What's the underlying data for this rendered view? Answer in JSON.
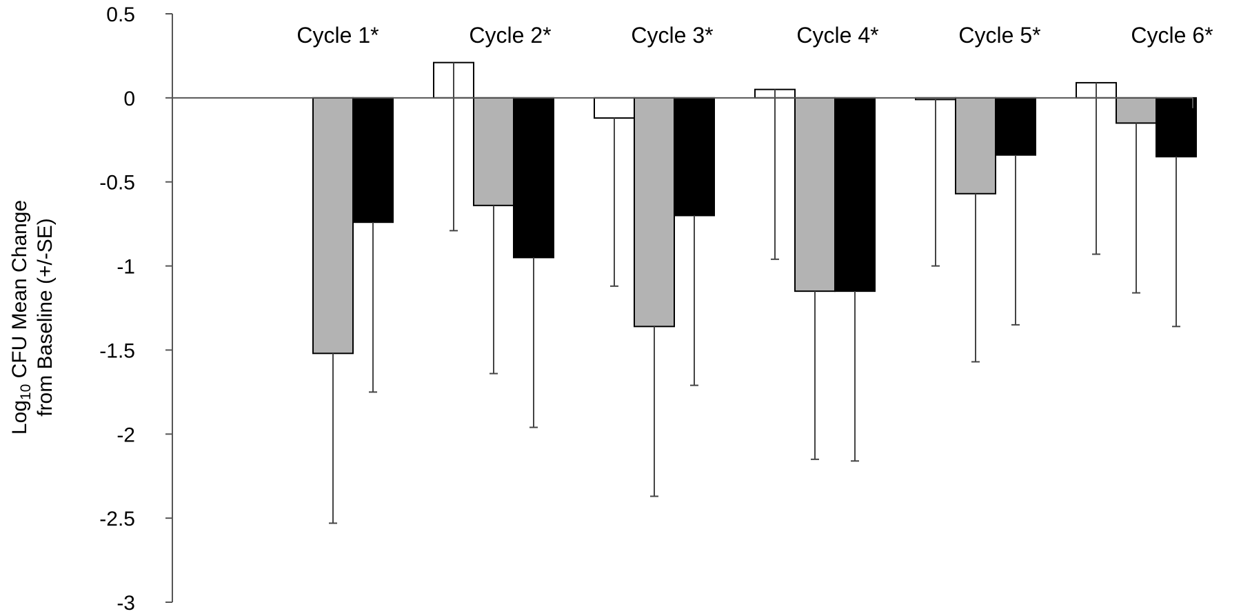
{
  "chart_data": {
    "type": "bar",
    "categories": [
      "Cycle 1*",
      "Cycle 2*",
      "Cycle 3*",
      "Cycle 4*",
      "Cycle 5*",
      "Cycle 6*"
    ],
    "ylabel": {
      "line1_prefix": "Log",
      "line1_sub": "10",
      "line1_suffix": " CFU Mean Change",
      "line2": "from Baseline  (+/-SE)"
    },
    "ylim": [
      -3,
      0.5
    ],
    "yticks": [
      "0.5",
      "0",
      "-0.5",
      "-1",
      "-1.5",
      "-2",
      "-2.5",
      "-3"
    ],
    "ytick_values": [
      0.5,
      0,
      -0.5,
      -1,
      -1.5,
      -2,
      -2.5,
      -3
    ],
    "grid": false,
    "series": [
      {
        "fill": "#ffffff",
        "values": [
          null,
          0.21,
          -0.12,
          0.05,
          -0.01,
          0.09
        ],
        "error_low": [
          null,
          -0.79,
          -1.12,
          -0.96,
          -1.0,
          -0.93
        ]
      },
      {
        "fill": "#b3b3b3",
        "values": [
          -1.52,
          -0.64,
          -1.36,
          -1.15,
          -0.57,
          -0.15
        ],
        "error_low": [
          -2.53,
          -1.64,
          -2.37,
          -2.15,
          -1.57,
          -1.16
        ]
      },
      {
        "fill": "#000000",
        "values": [
          -0.74,
          -0.95,
          -0.7,
          -1.15,
          -0.34,
          -0.35
        ],
        "error_low": [
          -1.75,
          -1.96,
          -1.71,
          -2.16,
          -1.35,
          -1.36
        ]
      }
    ]
  }
}
